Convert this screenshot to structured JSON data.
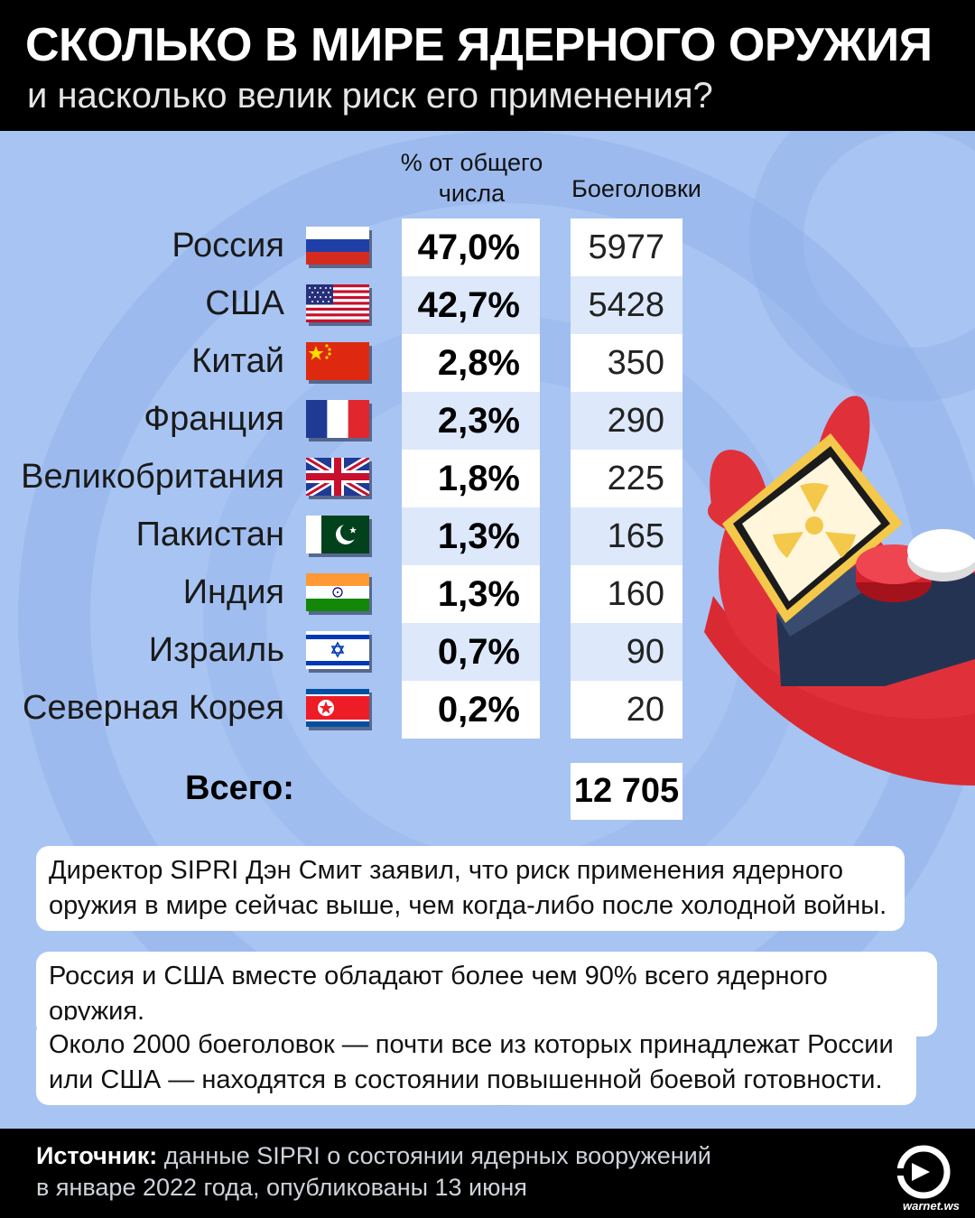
{
  "header": {
    "title": "СКОЛЬКО В МИРЕ ЯДЕРНОГО ОРУЖИЯ",
    "subtitle": "и насколько велик риск его применения?"
  },
  "columns": {
    "pct_line1": "% от общего",
    "pct_line2": "числа",
    "warheads": "Боеголовки"
  },
  "chart_data": {
    "type": "table",
    "columns": [
      "% от общего числа",
      "Боеголовки"
    ],
    "rows": [
      {
        "country": "Россия",
        "pct": "47,0%",
        "warheads": "5977"
      },
      {
        "country": "США",
        "pct": "42,7%",
        "warheads": "5428"
      },
      {
        "country": "Китай",
        "pct": "2,8%",
        "warheads": "350"
      },
      {
        "country": "Франция",
        "pct": "2,3%",
        "warheads": "290"
      },
      {
        "country": "Великобритания",
        "pct": "1,8%",
        "warheads": "225"
      },
      {
        "country": "Пакистан",
        "pct": "1,3%",
        "warheads": "165"
      },
      {
        "country": "Индия",
        "pct": "1,3%",
        "warheads": "160"
      },
      {
        "country": "Израиль",
        "pct": "0,7%",
        "warheads": "90"
      },
      {
        "country": "Северная Корея",
        "pct": "0,2%",
        "warheads": "20"
      }
    ],
    "total_label": "Всего:",
    "total_value": "12 705"
  },
  "notes": [
    "Директор SIPRI Дэн Смит заявил, что риск применения ядерного оружия в мире сейчас выше, чем когда-либо после холодной войны.",
    "Россия и США вместе обладают более чем 90% всего ядерного оружия.",
    "Около 2000 боеголовок — почти все из которых принадлежат России или США — находятся в состоянии повышенной боевой готовности."
  ],
  "footer": {
    "source_label": "Источник:",
    "source_line1": "данные SIPRI о состоянии ядерных вооружений",
    "source_line2": "в январе 2022 года, опубликованы 13 июня",
    "watermark": "warnet.ws"
  },
  "colors": {
    "background": "#a8c4f2",
    "header": "#000000",
    "hand": "#e0313a",
    "box": "#253352"
  }
}
